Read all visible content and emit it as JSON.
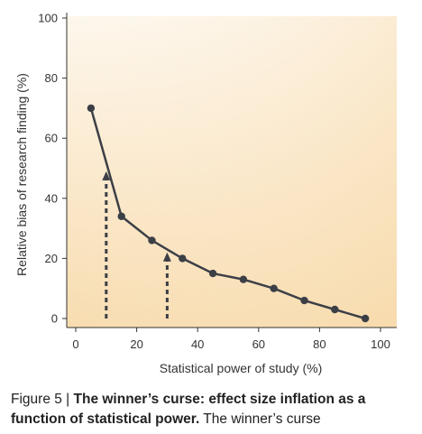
{
  "chart_data": {
    "type": "line",
    "title": "",
    "xlabel": "Statistical power of study (%)",
    "ylabel": "Relative bias of research finding (%)",
    "xlim": [
      0,
      100
    ],
    "ylim": [
      0,
      100
    ],
    "xticks": [
      0,
      20,
      40,
      60,
      80,
      100
    ],
    "yticks": [
      0,
      20,
      40,
      60,
      80,
      100
    ],
    "grid": false,
    "series": [
      {
        "x": [
          5,
          15,
          25,
          35,
          45,
          55,
          65,
          75,
          85,
          95
        ],
        "y": [
          70,
          34,
          26,
          20,
          15,
          13,
          10,
          6,
          3,
          0
        ],
        "marker": "circle"
      }
    ],
    "annotations": [
      {
        "type": "dashed-arrow",
        "x": 10,
        "y_from": 0,
        "y_to": 49
      },
      {
        "type": "dashed-arrow",
        "x": 30,
        "y_from": 0,
        "y_to": 22
      }
    ],
    "colors": {
      "line": "#3c3f46",
      "marker": "#3c3f46",
      "background_light": "#fdf3e3",
      "background_warm": "#f7d9a8"
    }
  },
  "caption": {
    "label": "Figure 5 | ",
    "bold_text": "The winner’s curse: effect size inflation as a function of statistical power.",
    "text": "  The winner’s curse"
  }
}
